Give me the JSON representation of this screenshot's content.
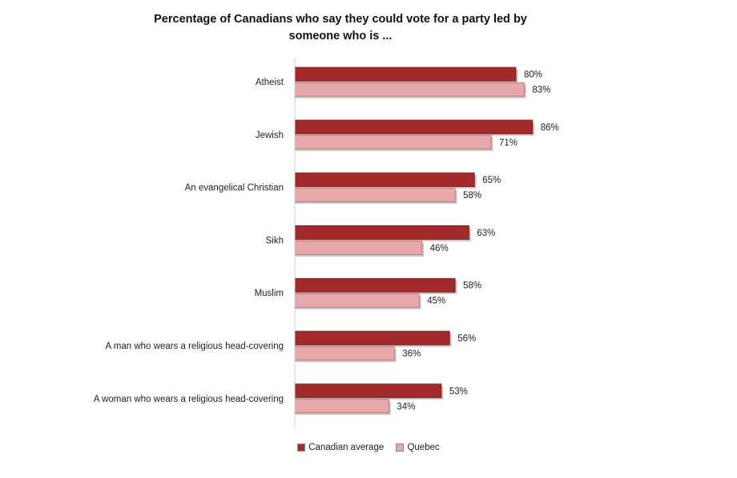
{
  "chart_data": {
    "type": "bar",
    "orientation": "horizontal",
    "title_line1": "Percentage of Canadians who say they could vote for a party led by",
    "title_line2": "someone who is ...",
    "categories": [
      "Atheist",
      "Jewish",
      "An evangelical Christian",
      "Sikh",
      "Muslim",
      "A man who wears a religious head-covering",
      "A woman who wears a religious head-covering"
    ],
    "series": [
      {
        "name": "Canadian average",
        "values": [
          80,
          86,
          65,
          63,
          58,
          56,
          53
        ],
        "labels": [
          "80%",
          "86%",
          "65%",
          "63%",
          "58%",
          "56%",
          "53%"
        ],
        "color": "#a32a2a",
        "edge": "#6e1414"
      },
      {
        "name": "Quebec",
        "values": [
          83,
          71,
          58,
          46,
          45,
          36,
          34
        ],
        "labels": [
          "83%",
          "71%",
          "58%",
          "46%",
          "45%",
          "36%",
          "34%"
        ],
        "color": "#e6a8a8",
        "edge": "#b26b6b"
      }
    ],
    "xlim": [
      0,
      100
    ],
    "grid": false,
    "legend_position": "bottom"
  }
}
